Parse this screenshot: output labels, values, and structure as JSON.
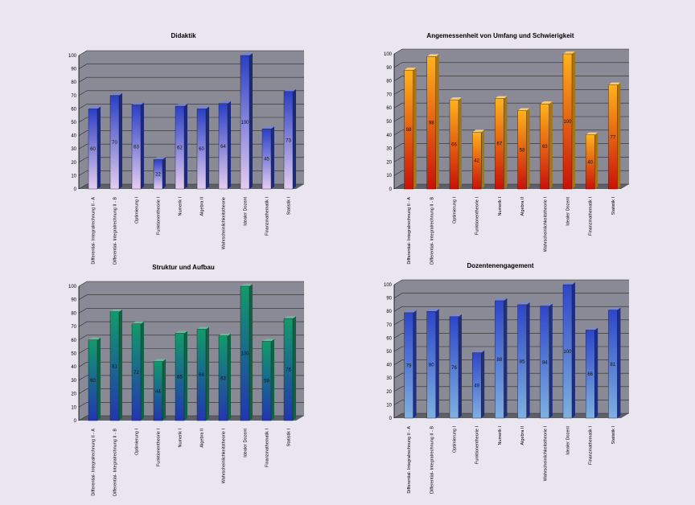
{
  "chart_data": [
    {
      "type": "bar",
      "title": "Didaktik",
      "categories": [
        "Differential- Integralrechnung II - A",
        "Differential- Integralrechnung II - B",
        "Optimierung I",
        "Funktionentheorie I",
        "Numerik I",
        "Algebra II",
        "Wahrscheinlichkeitstheorie",
        "Idealer Dozent",
        "Finanzmathematik I",
        "Statistik I"
      ],
      "values": [
        60,
        70,
        63,
        22,
        62,
        60,
        64,
        100,
        45,
        73
      ],
      "ylim": [
        0,
        100
      ],
      "yticks": [
        0,
        10,
        20,
        30,
        40,
        50,
        60,
        70,
        80,
        90,
        100
      ],
      "grid": true,
      "colors": {
        "top": "#2a3fc4",
        "bottom": "#e4cdf0"
      }
    },
    {
      "type": "bar",
      "title": "Angemessenheit von Umfang und Schwierigkeit",
      "categories": [
        "Differential- Integralrechnung II - A",
        "Differential- Integralrechnung II - B",
        "Optimierung I",
        "Funktionentheorie I",
        "Numerik I",
        "Algebra II",
        "Wahrscheinlichkeitstheorie I",
        "Idealer Dozent",
        "Finanzmathematik I",
        "Statistik I"
      ],
      "values": [
        88,
        98,
        66,
        42,
        67,
        58,
        63,
        100,
        40,
        77
      ],
      "ylim": [
        0,
        100
      ],
      "yticks": [
        0,
        10,
        20,
        30,
        40,
        50,
        60,
        70,
        80,
        90,
        100
      ],
      "grid": true,
      "colors": {
        "top": "#ffb21c",
        "bottom": "#c9110a"
      }
    },
    {
      "type": "bar",
      "title": "Struktur und Aufbau",
      "categories": [
        "Differential- Integralrechnung II - A",
        "Differential- Integralrechnung II - B",
        "Optimierung I",
        "Funktionentheorie I",
        "Numerik I",
        "Algebra II",
        "Wahrscheinlichkeitstheorie I",
        "Idealer Dozent",
        "Finanzmathematik I",
        "Statistik I"
      ],
      "values": [
        60,
        81,
        72,
        44,
        65,
        68,
        63,
        100,
        59,
        76
      ],
      "ylim": [
        0,
        100
      ],
      "yticks": [
        0,
        10,
        20,
        30,
        40,
        50,
        60,
        70,
        80,
        90,
        100
      ],
      "grid": true,
      "colors": {
        "top": "#129a6a",
        "bottom": "#2336b0"
      }
    },
    {
      "type": "bar",
      "title": "Dozentenengagement",
      "categories": [
        "Differential- Integralrechnung II - A",
        "Differential- Integralrechnung II - B",
        "Optimierung I",
        "Funktionentheorie I",
        "Numerik I",
        "Algebra II",
        "Wahrscheinlichkeitstheorie I",
        "Idealer Dozent",
        "Finanzmathematik I",
        "Statistik I"
      ],
      "values": [
        79,
        80,
        76,
        49,
        88,
        85,
        84,
        100,
        66,
        81
      ],
      "ylim": [
        0,
        100
      ],
      "yticks": [
        0,
        10,
        20,
        30,
        40,
        50,
        60,
        70,
        80,
        90,
        100
      ],
      "grid": true,
      "colors": {
        "top": "#2e46c8",
        "bottom": "#7fb0e0"
      }
    }
  ]
}
